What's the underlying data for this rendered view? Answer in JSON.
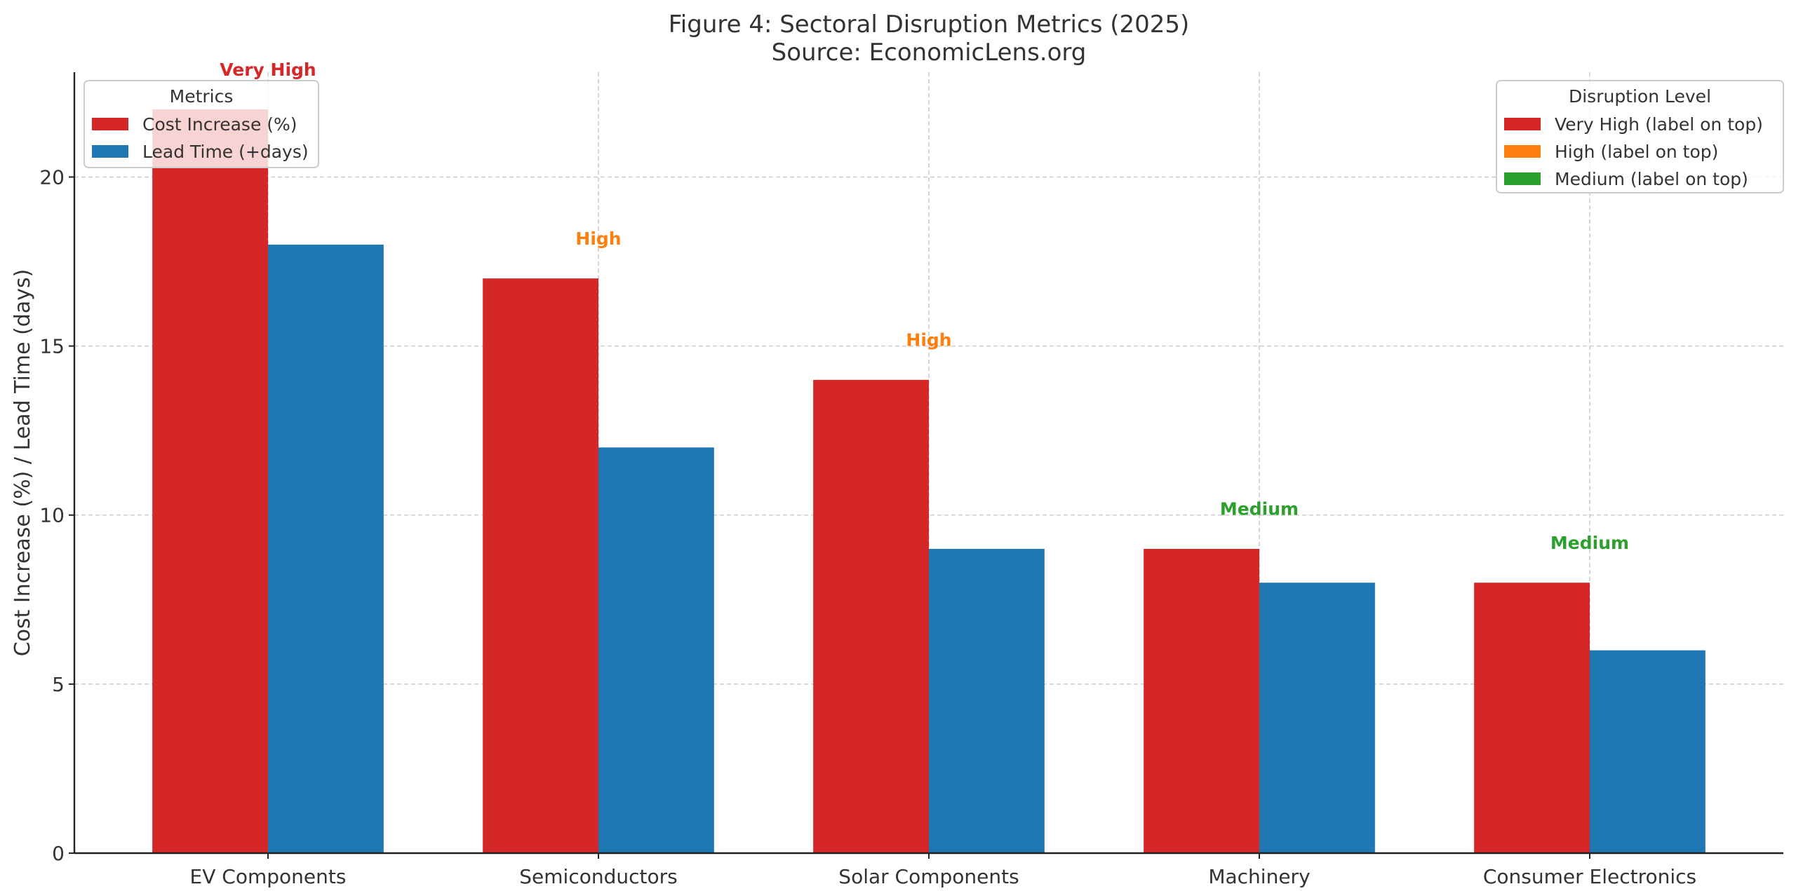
{
  "chart_data": {
    "type": "bar",
    "title": "Figure 4: Sectoral Disruption Metrics (2025)",
    "subtitle": "Source: EconomicLens.org",
    "xlabel": "",
    "ylabel": "Cost Increase (%) / Lead Time (days)",
    "ylim": [
      0,
      23.1
    ],
    "yticks": [
      0,
      5,
      10,
      15,
      20
    ],
    "grid": true,
    "categories": [
      "EV Components",
      "Semiconductors",
      "Solar Components",
      "Machinery",
      "Consumer Electronics"
    ],
    "series": [
      {
        "name": "Cost Increase (%)",
        "color": "#d62728",
        "values": [
          22,
          17,
          14,
          9,
          8
        ]
      },
      {
        "name": "Lead Time (+days)",
        "color": "#1f77b4",
        "values": [
          18,
          12,
          9,
          8,
          6
        ]
      }
    ],
    "annotations": [
      {
        "text": "Very High",
        "level": "Very High",
        "y": 23
      },
      {
        "text": "High",
        "level": "High",
        "y": 18
      },
      {
        "text": "High",
        "level": "High",
        "y": 15
      },
      {
        "text": "Medium",
        "level": "Medium",
        "y": 10
      },
      {
        "text": "Medium",
        "level": "Medium",
        "y": 9
      }
    ],
    "legends": [
      {
        "title": "Metrics",
        "placement": "top-left",
        "entries": [
          {
            "label": "Cost Increase (%)",
            "color": "#d62728"
          },
          {
            "label": "Lead Time (+days)",
            "color": "#1f77b4"
          }
        ]
      },
      {
        "title": "Disruption Level",
        "placement": "top-right",
        "entries": [
          {
            "label": "Very High (label on top)",
            "color": "#d62728"
          },
          {
            "label": "High (label on top)",
            "color": "#ff7f0e"
          },
          {
            "label": "Medium (label on top)",
            "color": "#2ca02c"
          }
        ]
      }
    ],
    "level_colors": {
      "Very High": "#d62728",
      "High": "#ff7f0e",
      "Medium": "#2ca02c"
    }
  }
}
